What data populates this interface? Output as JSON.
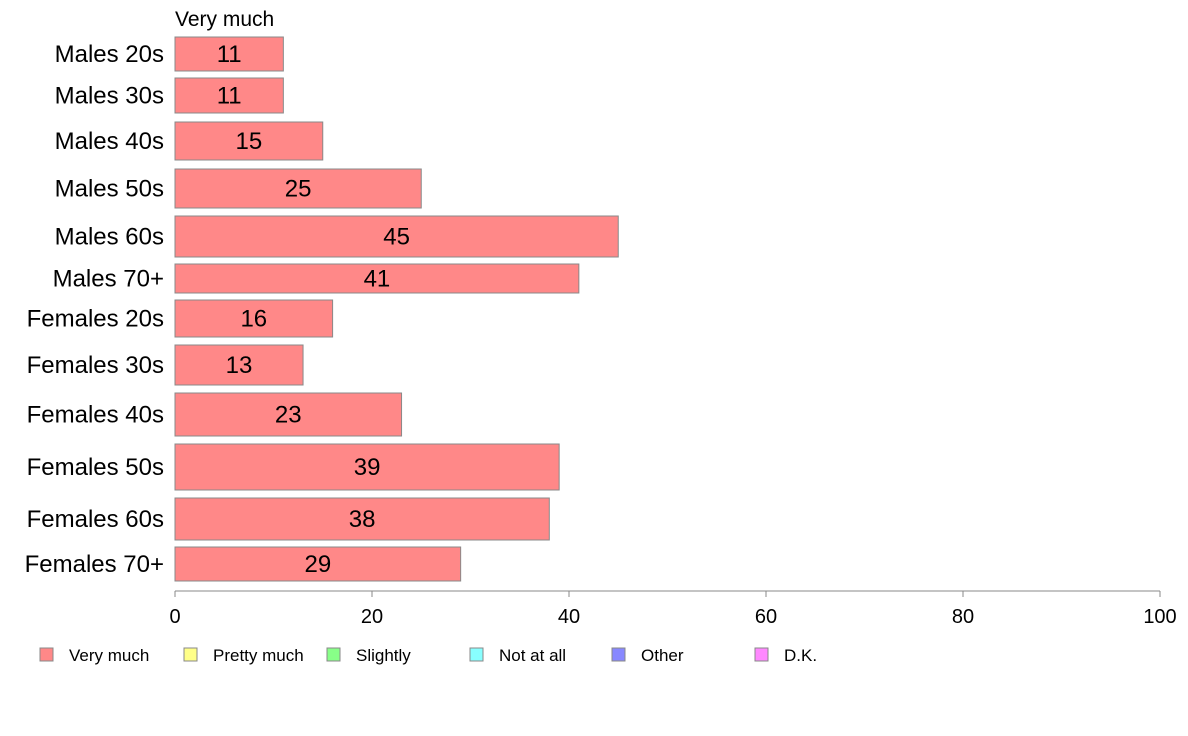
{
  "chart_data": {
    "type": "bar",
    "orientation": "horizontal",
    "stacked": true,
    "categories": [
      "Males 20s",
      "Males 30s",
      "Males 40s",
      "Males 50s",
      "Males 60s",
      "Males 70+",
      "Females 20s",
      "Females 30s",
      "Females 40s",
      "Females 50s",
      "Females 60s",
      "Females 70+"
    ],
    "series": [
      {
        "name": "Very much",
        "values": [
          11,
          11,
          15,
          25,
          45,
          41,
          16,
          13,
          23,
          39,
          38,
          29
        ]
      }
    ],
    "visible_series_header": "Very much",
    "xlim": [
      0,
      100
    ],
    "xticks": [
      0,
      20,
      40,
      60,
      80,
      100
    ],
    "grid": false,
    "legend_position": "bottom",
    "legend": [
      {
        "label": "Very much",
        "color": "#ff8888"
      },
      {
        "label": "Pretty much",
        "color": "#ffff88"
      },
      {
        "label": "Slightly",
        "color": "#88ff88"
      },
      {
        "label": "Not at all",
        "color": "#88ffff"
      },
      {
        "label": "Other",
        "color": "#8888ff"
      },
      {
        "label": "D.K.",
        "color": "#ff88ff"
      }
    ],
    "bar_color": "#ff8888",
    "bar_border_color": "#888888"
  }
}
